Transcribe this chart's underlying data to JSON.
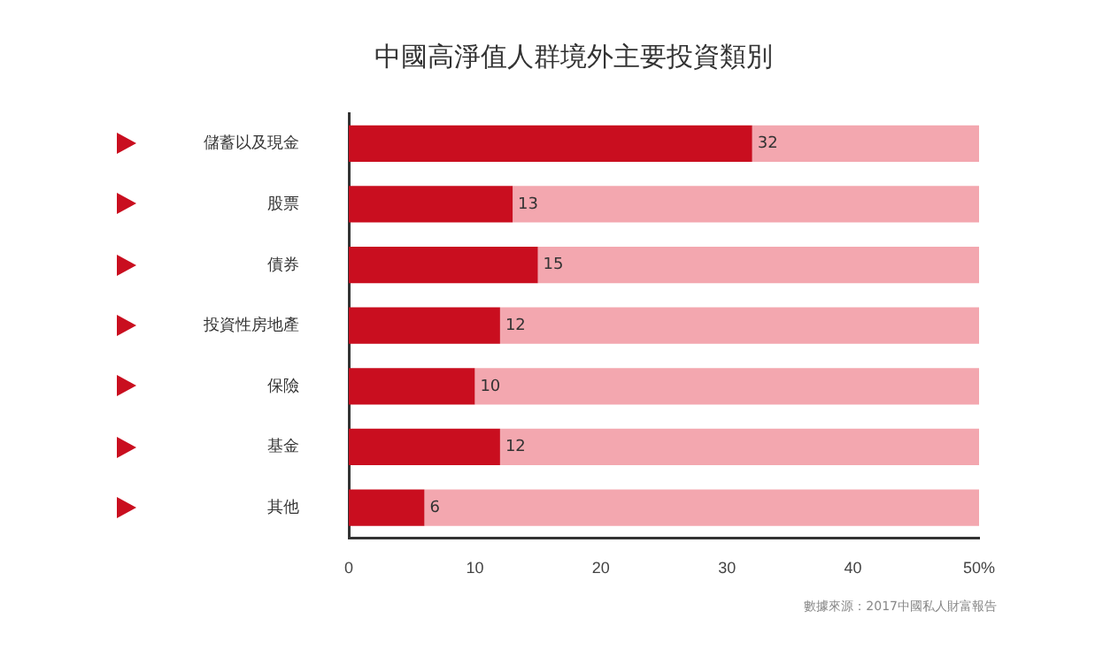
{
  "chart_data": {
    "type": "bar",
    "orientation": "horizontal",
    "stacked": true,
    "title": "中國高淨值人群境外主要投資類別",
    "categories": [
      "儲蓄以及現金",
      "股票",
      "債券",
      "投資性房地產",
      "保險",
      "基金",
      "其他"
    ],
    "series": [
      {
        "color": "#c90e1f",
        "values": [
          32,
          13,
          15,
          12,
          10,
          12,
          6
        ],
        "value_labels": [
          "32",
          "13",
          "15",
          "12",
          "10",
          "12",
          "6"
        ]
      },
      {
        "color": "#f3a7af",
        "values": [
          18,
          37,
          35,
          38,
          40,
          38,
          44
        ]
      }
    ],
    "xlim": [
      0,
      50
    ],
    "xticks": [
      0,
      10,
      20,
      30,
      40,
      {
        "value": 50,
        "label": "50%"
      }
    ],
    "grid": false,
    "legend": false,
    "annotations": [
      "數據來源：2017中國私人財富報告"
    ]
  }
}
